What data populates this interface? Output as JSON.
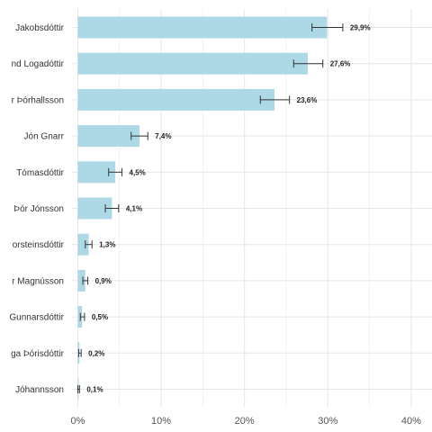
{
  "chart_data": {
    "type": "bar",
    "orientation": "horizontal",
    "categories": [
      "Jakobsdóttir",
      "nd Logadóttir",
      "r Þórhallsson",
      "Jón Gnarr",
      "Tómasdóttir",
      "Þór Jónsson",
      "orsteinsdóttir",
      "r Magnússon",
      "Gunnarsdóttir",
      "ga Þórisdóttir",
      "Jóhannsson"
    ],
    "values": [
      29.9,
      27.6,
      23.6,
      7.4,
      4.5,
      4.1,
      1.3,
      0.9,
      0.5,
      0.2,
      0.1
    ],
    "error_low": [
      28.1,
      25.9,
      21.9,
      6.4,
      3.7,
      3.3,
      0.9,
      0.6,
      0.3,
      0.1,
      0.0
    ],
    "error_high": [
      31.8,
      29.4,
      25.4,
      8.4,
      5.3,
      4.9,
      1.7,
      1.2,
      0.8,
      0.4,
      0.2
    ],
    "data_labels": [
      "29,9%",
      "27,6%",
      "23,6%",
      "7,4%",
      "4,5%",
      "4,1%",
      "1,3%",
      "0,9%",
      "0,5%",
      "0,2%",
      "0,1%"
    ],
    "x_ticks": [
      0,
      10,
      20,
      30,
      40
    ],
    "x_tick_labels": [
      "0%",
      "10%",
      "20%",
      "30%",
      "40%"
    ],
    "xlim": [
      -0.7,
      42.5
    ],
    "title": "",
    "xlabel": "",
    "ylabel": "",
    "grid": true,
    "legend": "none",
    "colors": {
      "bar": "#add8e6",
      "error_bar": "#333333",
      "grid": "#e6e6e6"
    }
  }
}
